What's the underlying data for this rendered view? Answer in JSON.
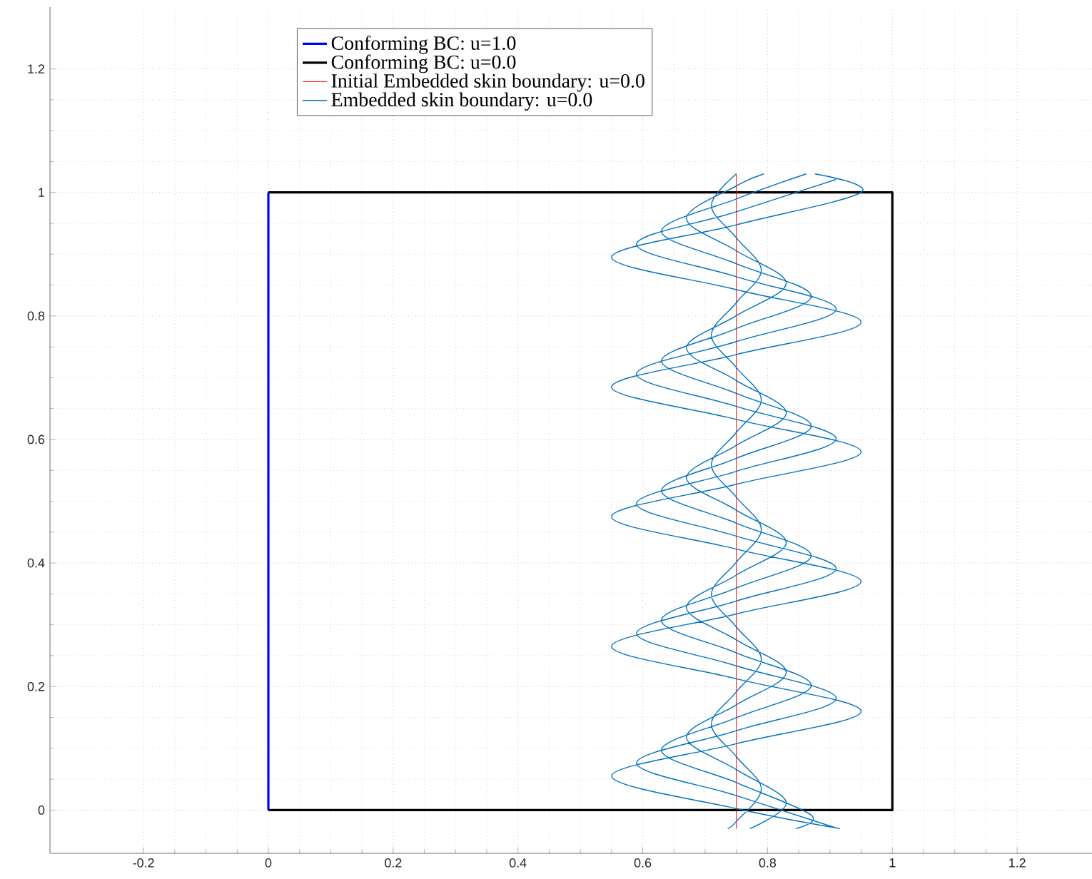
{
  "chart_data": {
    "type": "line",
    "xlim": [
      -0.35,
      1.32
    ],
    "ylim": [
      -0.07,
      1.3
    ],
    "xticks": [
      -0.2,
      0,
      0.2,
      0.4,
      0.6,
      0.8,
      1,
      1.2
    ],
    "yticks": [
      0,
      0.2,
      0.4,
      0.6,
      0.8,
      1,
      1.2
    ],
    "grid": true,
    "legend": "top",
    "series": [
      {
        "name": "Conforming BC: u=1.0",
        "color": "#0000ff",
        "x": [
          0,
          0
        ],
        "values": [
          0,
          1
        ]
      },
      {
        "name": "Conforming BC: u=0.0",
        "color": "#000000",
        "x": [
          0,
          1,
          1,
          0
        ],
        "values": [
          0,
          0,
          1,
          1
        ]
      },
      {
        "name": "Initial Embedded skin boundary: u=0.0",
        "color": "#ff0000",
        "x": [
          0.75,
          0.75
        ],
        "values": [
          -0.03,
          1.03
        ]
      },
      {
        "name": "Embedded skin boundary: u=0.0",
        "color": "#0072bd",
        "x": [
          0.916,
          0.75,
          0.55,
          0.75,
          0.95,
          0.75,
          0.55,
          0.75,
          0.95,
          0.75,
          0.55,
          0.75,
          0.95,
          0.75,
          0.55,
          0.75,
          0.95,
          0.75,
          0.55,
          0.75,
          0.95,
          0.876,
          null,
          0.91,
          0.75,
          0.59,
          0.75,
          0.91,
          0.75,
          0.59,
          0.75,
          0.91,
          0.75,
          0.59,
          0.75,
          0.91,
          0.75,
          0.59,
          0.75,
          0.91,
          0.75,
          0.59,
          0.75,
          0.91,
          null,
          0.845,
          0.87,
          0.75,
          0.63,
          0.75,
          0.87,
          0.75,
          0.63,
          0.75,
          0.87,
          0.75,
          0.63,
          0.75,
          0.87,
          0.75,
          0.63,
          0.75,
          0.87,
          0.75,
          0.63,
          0.75,
          0.862,
          null,
          0.772,
          0.83,
          0.75,
          0.67,
          0.75,
          0.83,
          0.75,
          0.67,
          0.75,
          0.83,
          0.75,
          0.67,
          0.75,
          0.83,
          0.75,
          0.67,
          0.75,
          0.83,
          0.75,
          0.67,
          0.75,
          0.794,
          null,
          0.736,
          0.75,
          0.79,
          0.75,
          0.71,
          0.75,
          0.79,
          0.75,
          0.71,
          0.75,
          0.79,
          0.75,
          0.71,
          0.75,
          0.79,
          0.75,
          0.71,
          0.75,
          0.79,
          0.75,
          0.71,
          0.75
        ],
        "values": [
          -0.03,
          0.0025,
          0.055,
          0.1075,
          0.16,
          0.2125,
          0.265,
          0.3175,
          0.37,
          0.4225,
          0.475,
          0.5275,
          0.58,
          0.6325,
          0.685,
          0.7375,
          0.79,
          0.8425,
          0.895,
          0.9475,
          1.0,
          1.03,
          null,
          -0.029,
          0.0235,
          0.076,
          0.1285,
          0.181,
          0.2335,
          0.286,
          0.3385,
          0.391,
          0.4435,
          0.496,
          0.5485,
          0.601,
          0.6535,
          0.706,
          0.7585,
          0.811,
          0.8635,
          0.916,
          0.9685,
          1.021,
          null,
          -0.03,
          -0.008,
          0.0445,
          0.097,
          0.1495,
          0.202,
          0.2545,
          0.307,
          0.3595,
          0.412,
          0.4645,
          0.517,
          0.5695,
          0.622,
          0.6745,
          0.727,
          0.7795,
          0.832,
          0.8845,
          0.937,
          0.9895,
          1.03,
          null,
          -0.03,
          0.013,
          0.0655,
          0.118,
          0.1705,
          0.223,
          0.2755,
          0.328,
          0.3805,
          0.433,
          0.4855,
          0.538,
          0.5905,
          0.643,
          0.6955,
          0.748,
          0.8005,
          0.853,
          0.9055,
          0.958,
          1.0105,
          1.03,
          null,
          -0.03,
          -0.0185,
          0.034,
          0.0865,
          0.139,
          0.1915,
          0.244,
          0.2965,
          0.349,
          0.4015,
          0.454,
          0.5065,
          0.559,
          0.6115,
          0.664,
          0.7165,
          0.769,
          0.8215,
          0.874,
          0.9265,
          0.979,
          1.03
        ]
      }
    ]
  }
}
